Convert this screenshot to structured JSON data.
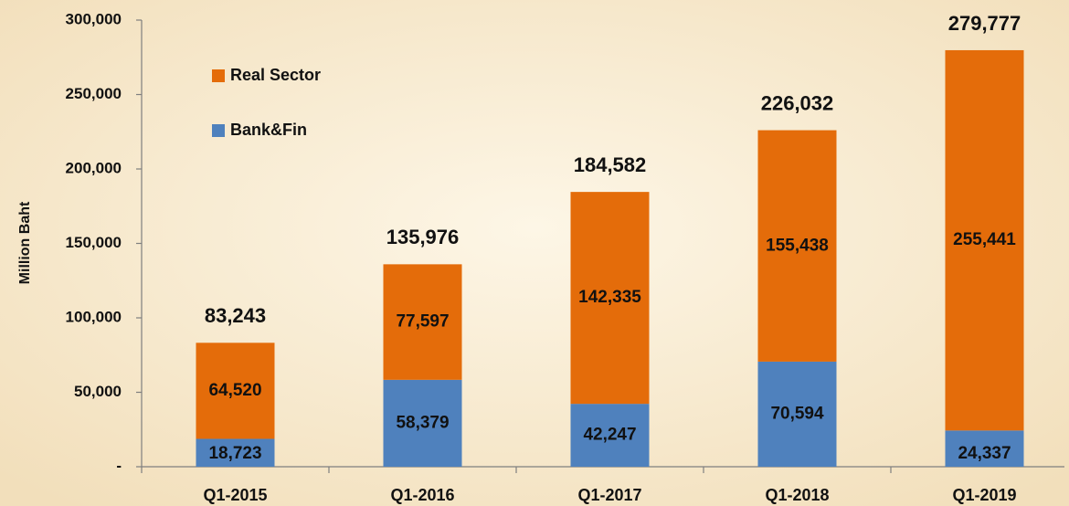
{
  "chart_data": {
    "type": "stacked_bar",
    "y_axis_label": "Million Baht",
    "categories": [
      "Q1-2015",
      "Q1-2016",
      "Q1-2017",
      "Q1-2018",
      "Q1-2019"
    ],
    "series": [
      {
        "name": "Bank&Fin",
        "color": "#4f81bd",
        "values": [
          18723,
          58379,
          42247,
          70594,
          24337
        ],
        "value_labels": [
          "18,723",
          "58,379",
          "42,247",
          "70,594",
          "24,337"
        ]
      },
      {
        "name": "Real Sector",
        "color": "#e46c0a",
        "values": [
          64520,
          77597,
          142335,
          155438,
          255441
        ],
        "value_labels": [
          "64,520",
          "77,597",
          "142,335",
          "155,438",
          "255,441"
        ]
      }
    ],
    "totals": [
      83243,
      135976,
      184582,
      226032,
      279777
    ],
    "total_labels": [
      "83,243",
      "135,976",
      "184,582",
      "226,032",
      "279,777"
    ],
    "ylim": [
      0,
      300000
    ],
    "yticks": [
      {
        "value": 0,
        "label": "-"
      },
      {
        "value": 50000,
        "label": "50,000"
      },
      {
        "value": 100000,
        "label": "100,000"
      },
      {
        "value": 150000,
        "label": "150,000"
      },
      {
        "value": 200000,
        "label": "200,000"
      },
      {
        "value": 250000,
        "label": "250,000"
      },
      {
        "value": 300000,
        "label": "300,000"
      }
    ],
    "legend": "upper left"
  }
}
